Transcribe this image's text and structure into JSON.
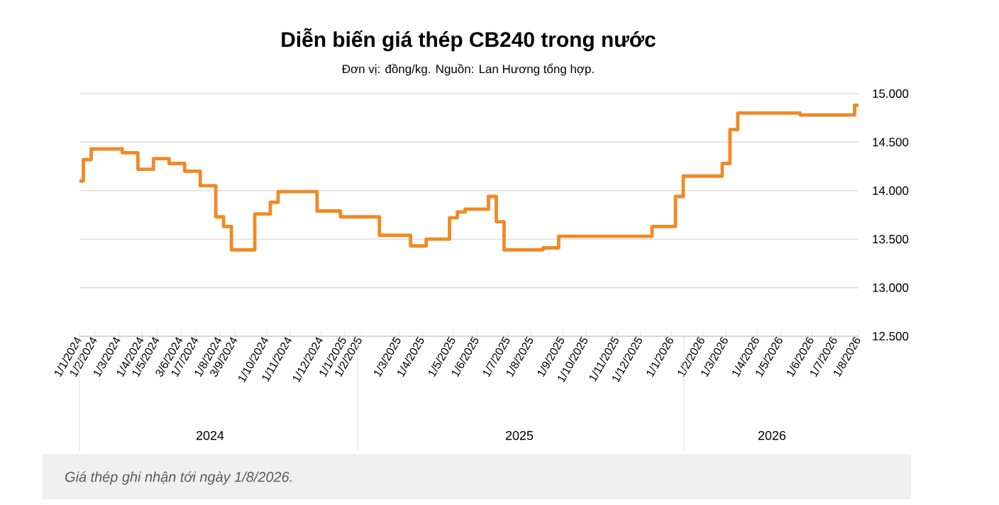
{
  "chart_data": {
    "type": "step",
    "title": "Diễn biến giá thép CB240 trong nước",
    "subtitle": "Đơn vị: đồng/kg. Nguồn: Lan Hương tổng hợp.",
    "annotations": [
      "2024",
      "2025",
      "2026",
      "Giá thép ghi nhận tới ngày 1/8/2026."
    ],
    "categories": [
      "1/1/2024",
      null,
      "1/2/2024",
      null,
      null,
      "1/3/2024",
      null,
      null,
      "1/4/2024",
      null,
      "1/5/2024",
      null,
      null,
      "3/6/2024",
      null,
      "1/7/2024",
      null,
      null,
      "1/8/2024",
      null,
      "3/9/2024",
      null,
      null,
      null,
      "1/10/2024",
      null,
      null,
      "1/11/2024",
      null,
      null,
      null,
      "1/12/2024",
      null,
      null,
      "1/1/2025",
      null,
      "1/2/2025",
      null,
      null,
      null,
      null,
      "1/3/2025",
      null,
      null,
      "1/4/2025",
      null,
      null,
      null,
      "1/5/2025",
      null,
      null,
      "1/6/2025",
      null,
      null,
      null,
      "1/7/2025",
      null,
      null,
      "1/8/2025",
      null,
      null,
      null,
      "1/9/2025",
      null,
      null,
      "1/10/2025",
      null,
      null,
      null,
      "1/11/2025",
      null,
      null,
      "1/12/2025",
      null,
      null,
      null,
      "1/1/2026",
      null,
      null,
      null,
      "1/2/2026",
      null,
      null,
      "1/3/2026",
      null,
      null,
      null,
      "1/4/2026",
      null,
      null,
      "1/5/2026",
      null,
      null,
      null,
      "1/6/2026",
      null,
      null,
      "1/7/2026",
      null,
      null,
      "1/8/2026"
    ],
    "series": [
      {
        "color": "#f08a24",
        "values": [
          14100,
          14320,
          14430,
          14430,
          14430,
          14430,
          14390,
          14390,
          14220,
          14220,
          14330,
          14330,
          14280,
          14280,
          14200,
          14200,
          14050,
          14050,
          13730,
          13630,
          13390,
          13390,
          13390,
          13760,
          13760,
          13880,
          13990,
          13990,
          13990,
          13990,
          13990,
          13790,
          13790,
          13790,
          13730,
          13730,
          13730,
          13730,
          13730,
          13540,
          13540,
          13540,
          13540,
          13430,
          13430,
          13500,
          13500,
          13500,
          13720,
          13780,
          13810,
          13810,
          13810,
          13940,
          13680,
          13390,
          13390,
          13390,
          13390,
          13390,
          13410,
          13410,
          13530,
          13530,
          13530,
          13530,
          13530,
          13530,
          13530,
          13530,
          13530,
          13530,
          13530,
          13530,
          13630,
          13630,
          13630,
          13940,
          14150,
          14150,
          14150,
          14150,
          14150,
          14280,
          14630,
          14800,
          14800,
          14800,
          14800,
          14800,
          14800,
          14800,
          14800,
          14780,
          14780,
          14780,
          14780,
          14780,
          14780,
          14780,
          14880
        ]
      }
    ],
    "ylim": [
      12500,
      15000
    ],
    "yticks": [
      {
        "value": 12500,
        "label": "12.500"
      },
      {
        "value": 13000,
        "label": "13.000"
      },
      {
        "value": 13500,
        "label": "13.500"
      },
      {
        "value": 14000,
        "label": "14.000"
      },
      {
        "value": 14500,
        "label": "14.500"
      },
      {
        "value": 15000,
        "label": "15.000"
      }
    ],
    "grid": "y",
    "marker": "none",
    "line_style": "solid"
  }
}
